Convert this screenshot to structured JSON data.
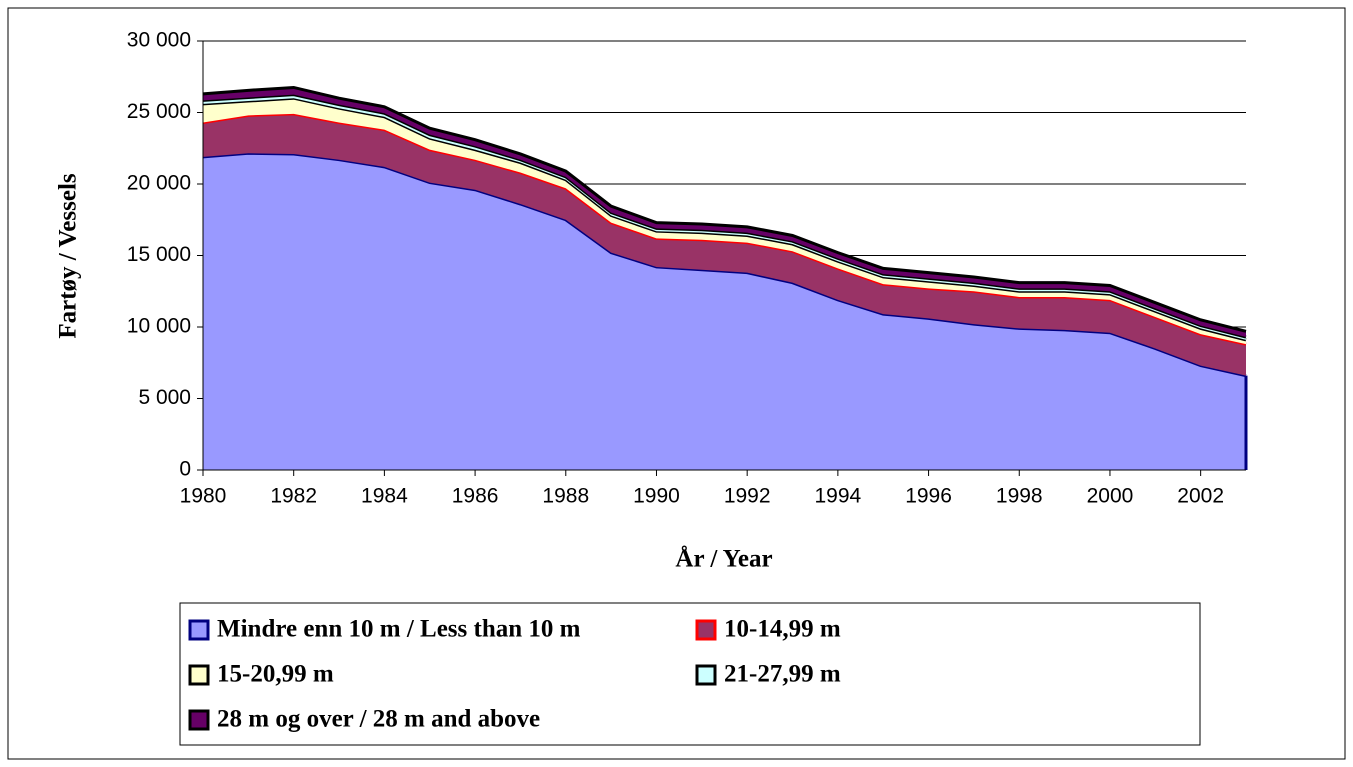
{
  "chart_data": {
    "type": "stacked-area",
    "x_label": "År / Year",
    "y_label": "Fartøy / Vessels",
    "x": [
      1980,
      1981,
      1982,
      1983,
      1984,
      1985,
      1986,
      1987,
      1988,
      1989,
      1990,
      1991,
      1992,
      1993,
      1994,
      1995,
      1996,
      1997,
      1998,
      1999,
      2000,
      2001,
      2002,
      2003
    ],
    "xlim": [
      1980,
      2003
    ],
    "xticks": [
      1980,
      1982,
      1984,
      1986,
      1988,
      1990,
      1992,
      1994,
      1996,
      1998,
      2000,
      2002
    ],
    "ylim": [
      0,
      30000
    ],
    "yticks": [
      0,
      {
        "value": 5000,
        "label": "5 000"
      },
      {
        "value": 10000,
        "label": "10 000"
      },
      {
        "value": 15000,
        "label": "15 000"
      },
      {
        "value": 20000,
        "label": "20 000"
      },
      {
        "value": 25000,
        "label": "25 000"
      },
      {
        "value": 30000,
        "label": "30 000"
      }
    ],
    "grid": true,
    "series": [
      {
        "name": "Mindre enn 10 m / Less than 10 m",
        "color": "#9999ff",
        "edge": "#000080",
        "values": [
          21900,
          22150,
          22100,
          21700,
          21200,
          20100,
          19600,
          18600,
          17500,
          15200,
          14200,
          14000,
          13800,
          13100,
          11900,
          10900,
          10600,
          10200,
          9900,
          9800,
          9600,
          8500,
          7300,
          6600
        ]
      },
      {
        "name": "10-14,99 m",
        "color": "#993366",
        "edge": "#ff0000",
        "values": [
          2400,
          2650,
          2800,
          2600,
          2600,
          2300,
          2100,
          2200,
          2200,
          2100,
          2000,
          2100,
          2100,
          2200,
          2200,
          2100,
          2100,
          2300,
          2200,
          2300,
          2300,
          2200,
          2200,
          2200
        ]
      },
      {
        "name": "15-20,99 m",
        "color": "#ffffcc",
        "edge": "#000000",
        "values": [
          1300,
          1000,
          1100,
          1000,
          900,
          800,
          700,
          700,
          600,
          500,
          500,
          500,
          500,
          500,
          500,
          500,
          500,
          400,
          400,
          400,
          400,
          400,
          400,
          300
        ]
      },
      {
        "name": "21-27,99 m",
        "color": "#ccffff",
        "edge": "#000000",
        "values": [
          250,
          250,
          250,
          250,
          250,
          250,
          250,
          200,
          200,
          200,
          200,
          200,
          200,
          200,
          200,
          200,
          200,
          200,
          200,
          200,
          200,
          200,
          200,
          200
        ]
      },
      {
        "name": "28 m og over / 28 m and above",
        "color": "#660066",
        "edge": "#000000",
        "values": [
          450,
          500,
          500,
          450,
          450,
          450,
          450,
          400,
          400,
          450,
          400,
          400,
          400,
          400,
          400,
          400,
          400,
          400,
          400,
          400,
          400,
          400,
          400,
          400
        ]
      }
    ]
  }
}
